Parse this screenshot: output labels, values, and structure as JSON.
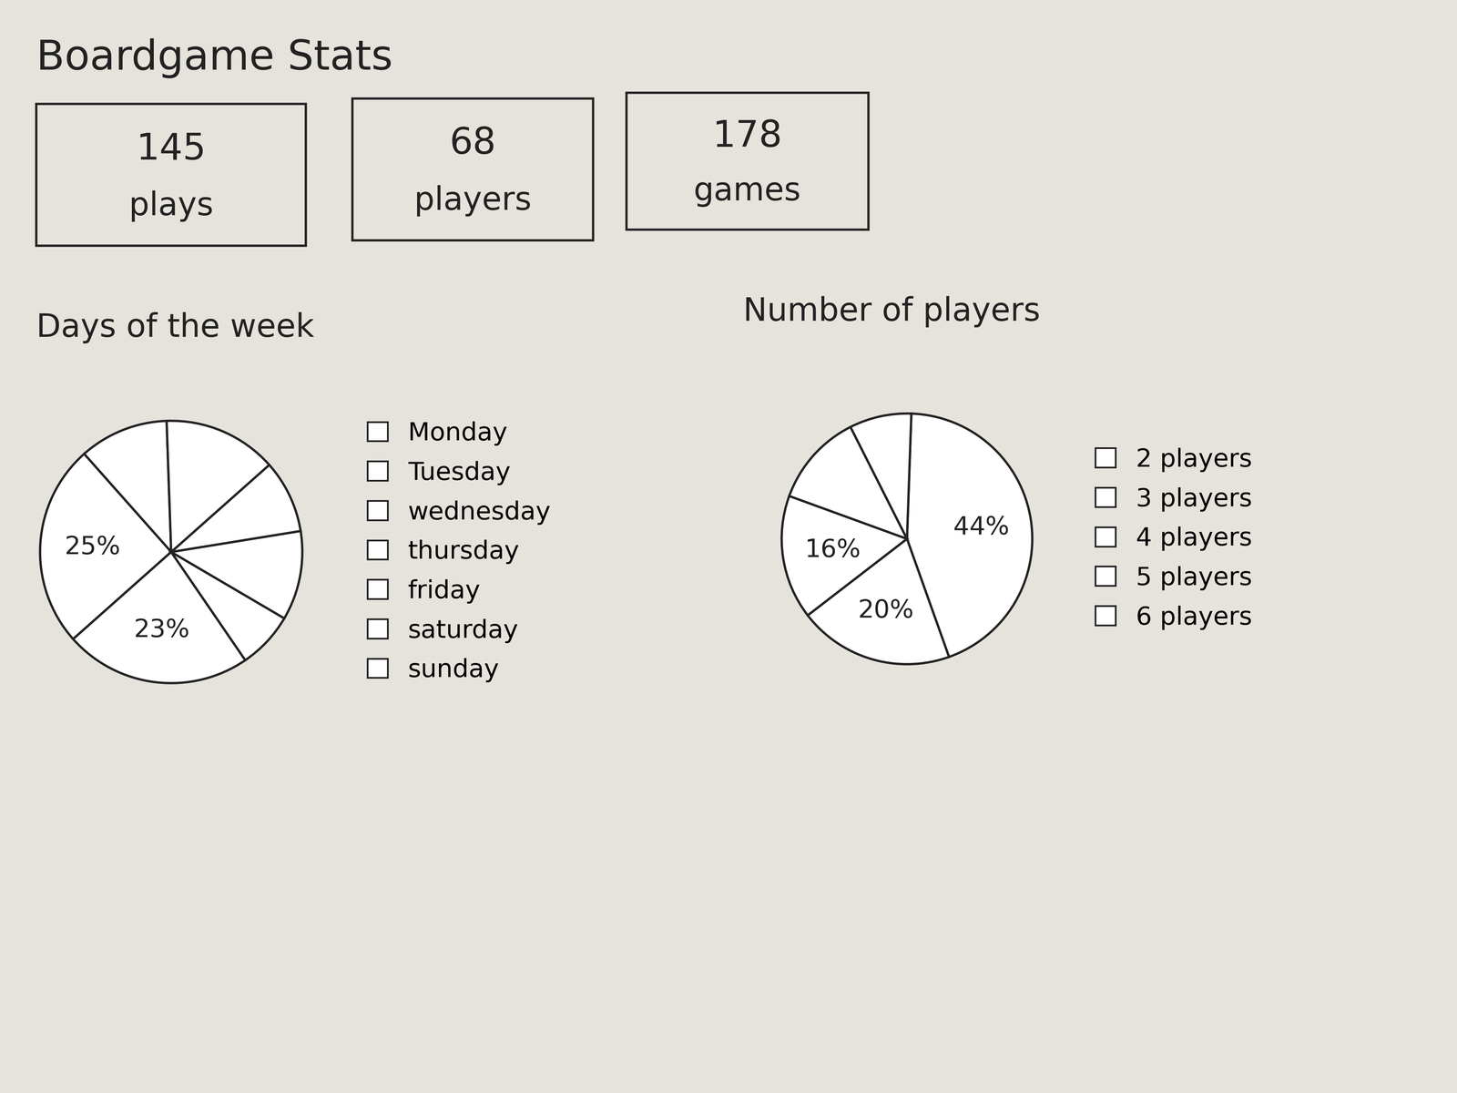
{
  "title": "Boardgame Stats",
  "stats": [
    {
      "value": 145,
      "label": "plays"
    },
    {
      "value": 68,
      "label": "players"
    },
    {
      "value": 178,
      "label": "games"
    }
  ],
  "chart_data": [
    {
      "type": "pie",
      "title": "Days of the week",
      "categories": [
        "Monday",
        "Tuesday",
        "wednesday",
        "thursday",
        "friday",
        "saturday",
        "sunday"
      ],
      "values": [
        11,
        25,
        23,
        7,
        11,
        9,
        14
      ],
      "value_labels": [
        null,
        "25%",
        "23%",
        null,
        null,
        null,
        null
      ],
      "data_labels": true,
      "legend": "right",
      "color": "#ffffff"
    },
    {
      "type": "pie",
      "title": "Number of players",
      "categories": [
        "2 players",
        "3 players",
        "4 players",
        "5 players",
        "6 players"
      ],
      "values": [
        44,
        20,
        16,
        12,
        8
      ],
      "value_labels": [
        "44%",
        "20%",
        "16%",
        null,
        null
      ],
      "data_labels": true,
      "legend": "right",
      "color": "#ffffff"
    }
  ]
}
